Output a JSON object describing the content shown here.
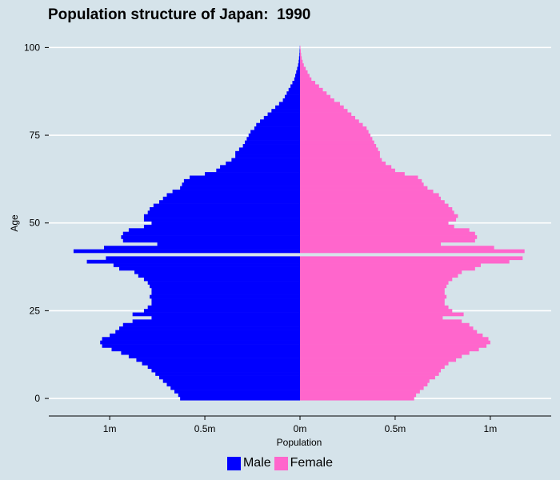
{
  "chart_data": {
    "type": "bar",
    "orientation": "horizontal-population-pyramid",
    "title": "Population structure of Japan:  1990",
    "xlabel": "Population",
    "ylabel": "Age",
    "xlim": [
      -1.32,
      1.32
    ],
    "ylim": [
      -5,
      101
    ],
    "x_tick_labels": [
      "1m",
      "0.5m",
      "0m",
      "0.5m",
      "1m"
    ],
    "x_tick_values": [
      -1.0,
      -0.5,
      0,
      0.5,
      1.0
    ],
    "y_tick_values": [
      0,
      25,
      50,
      75,
      100
    ],
    "y_tick_labels": [
      "0",
      "25",
      "50",
      "75",
      "100"
    ],
    "grid": "horizontal at y ticks",
    "legend_position": "bottom",
    "units_note": "population in millions",
    "age": [
      0,
      1,
      2,
      3,
      4,
      5,
      6,
      7,
      8,
      9,
      10,
      11,
      12,
      13,
      14,
      15,
      16,
      17,
      18,
      19,
      20,
      21,
      22,
      23,
      24,
      25,
      26,
      27,
      28,
      29,
      30,
      31,
      32,
      33,
      34,
      35,
      36,
      37,
      38,
      39,
      40,
      41,
      42,
      43,
      44,
      45,
      46,
      47,
      48,
      49,
      50,
      51,
      52,
      53,
      54,
      55,
      56,
      57,
      58,
      59,
      60,
      61,
      62,
      63,
      64,
      65,
      66,
      67,
      68,
      69,
      70,
      71,
      72,
      73,
      74,
      75,
      76,
      77,
      78,
      79,
      80,
      81,
      82,
      83,
      84,
      85,
      86,
      87,
      88,
      89,
      90,
      91,
      92,
      93,
      94,
      95,
      96,
      97,
      98,
      99,
      100
    ],
    "series": [
      {
        "name": "Male",
        "color": "#0000ff",
        "values": [
          0.63,
          0.64,
          0.66,
          0.68,
          0.7,
          0.72,
          0.74,
          0.76,
          0.78,
          0.8,
          0.83,
          0.86,
          0.9,
          0.94,
          0.99,
          1.04,
          1.05,
          1.04,
          1.0,
          0.97,
          0.95,
          0.93,
          0.88,
          0.78,
          0.88,
          0.82,
          0.8,
          0.78,
          0.78,
          0.79,
          0.78,
          0.78,
          0.79,
          0.8,
          0.82,
          0.85,
          0.87,
          0.95,
          0.98,
          1.12,
          1.02,
          0.0,
          1.19,
          1.03,
          0.75,
          0.93,
          0.94,
          0.93,
          0.9,
          0.82,
          0.78,
          0.82,
          0.82,
          0.8,
          0.79,
          0.77,
          0.74,
          0.72,
          0.7,
          0.67,
          0.63,
          0.62,
          0.61,
          0.58,
          0.5,
          0.44,
          0.42,
          0.39,
          0.36,
          0.34,
          0.34,
          0.32,
          0.3,
          0.29,
          0.28,
          0.27,
          0.26,
          0.24,
          0.23,
          0.21,
          0.19,
          0.17,
          0.15,
          0.13,
          0.11,
          0.09,
          0.08,
          0.07,
          0.06,
          0.05,
          0.04,
          0.03,
          0.025,
          0.02,
          0.015,
          0.01,
          0.007,
          0.005,
          0.003,
          0.002,
          0.001
        ]
      },
      {
        "name": "Female",
        "color": "#ff66cc",
        "values": [
          0.6,
          0.61,
          0.63,
          0.65,
          0.67,
          0.68,
          0.71,
          0.73,
          0.74,
          0.76,
          0.78,
          0.82,
          0.85,
          0.89,
          0.94,
          0.98,
          1.0,
          0.99,
          0.96,
          0.93,
          0.91,
          0.89,
          0.85,
          0.75,
          0.86,
          0.8,
          0.78,
          0.76,
          0.76,
          0.77,
          0.76,
          0.76,
          0.77,
          0.78,
          0.8,
          0.83,
          0.85,
          0.92,
          0.95,
          1.1,
          1.17,
          0.0,
          1.18,
          1.02,
          0.74,
          0.92,
          0.93,
          0.92,
          0.89,
          0.81,
          0.78,
          0.82,
          0.83,
          0.81,
          0.8,
          0.78,
          0.76,
          0.74,
          0.73,
          0.7,
          0.67,
          0.65,
          0.64,
          0.62,
          0.55,
          0.5,
          0.48,
          0.45,
          0.43,
          0.42,
          0.42,
          0.41,
          0.4,
          0.39,
          0.38,
          0.37,
          0.36,
          0.35,
          0.33,
          0.31,
          0.29,
          0.27,
          0.25,
          0.23,
          0.21,
          0.18,
          0.16,
          0.14,
          0.12,
          0.1,
          0.08,
          0.06,
          0.05,
          0.04,
          0.03,
          0.02,
          0.014,
          0.009,
          0.006,
          0.004,
          0.002
        ]
      }
    ]
  },
  "legend": {
    "items": [
      {
        "label": "Male",
        "color": "#0000ff"
      },
      {
        "label": "Female",
        "color": "#ff66cc"
      }
    ]
  }
}
